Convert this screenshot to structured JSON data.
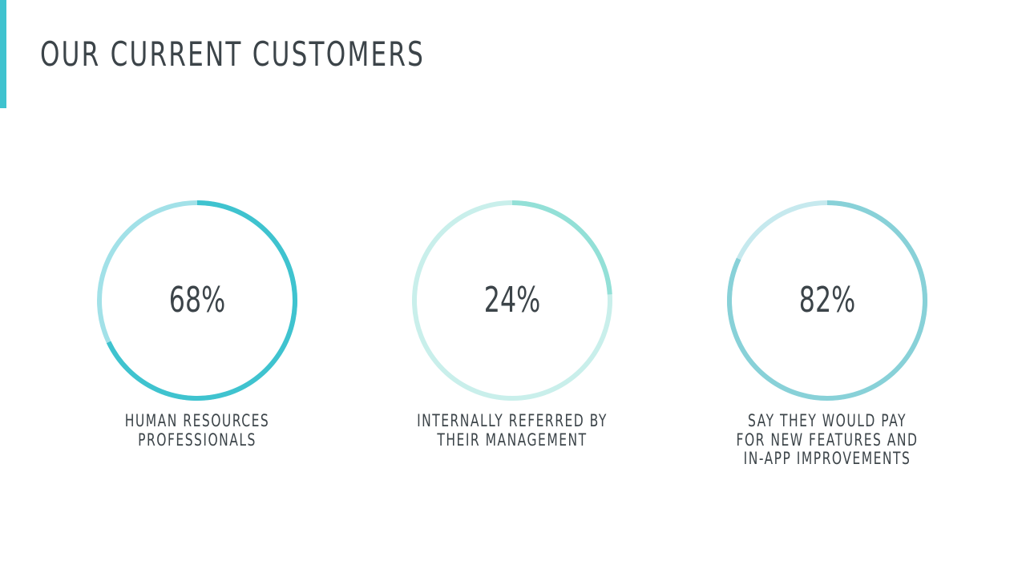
{
  "slide": {
    "title": "OUR CURRENT CUSTOMERS",
    "accent_color": "#3fc3cf"
  },
  "chart_data": [
    {
      "type": "pie",
      "value": 68,
      "label": "68%",
      "caption": [
        "HUMAN RESOURCES",
        "PROFESSIONALS"
      ],
      "color": "#3fc3cf",
      "track_color": "#a2e1e8"
    },
    {
      "type": "pie",
      "value": 24,
      "label": "24%",
      "caption": [
        "INTERNALLY REFERRED BY",
        "THEIR MANAGEMENT"
      ],
      "color": "#93e0d7",
      "track_color": "#c9efeb"
    },
    {
      "type": "pie",
      "value": 82,
      "label": "82%",
      "caption": [
        "SAY THEY WOULD PAY",
        "FOR NEW FEATURES AND",
        "IN-APP IMPROVEMENTS"
      ],
      "color": "#88d1d8",
      "track_color": "#c6e9ee"
    }
  ]
}
